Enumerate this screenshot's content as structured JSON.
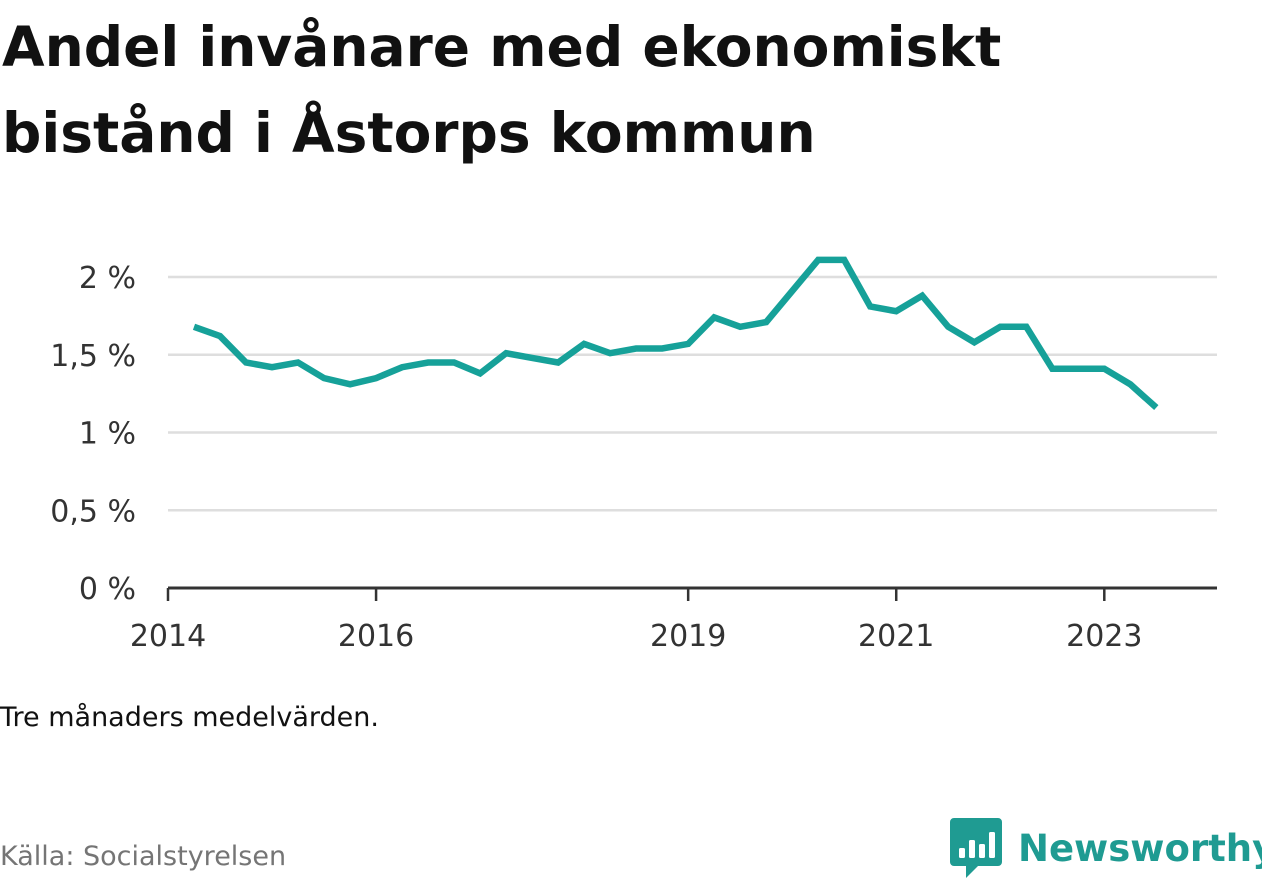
{
  "title": "Andel invånare med ekonomiskt bistånd i Åstorps kommun",
  "note": "Tre månaders medelvärden.",
  "source": "Källa: Socialstyrelsen",
  "brand": {
    "name": "Newsworthy",
    "icon": "newsworthy-logo-icon"
  },
  "colors": {
    "line": "#16a199",
    "grid": "#dedede",
    "axis": "#333333",
    "brand": "#1f9b92"
  },
  "chart_data": {
    "type": "line",
    "title": "Andel invånare med ekonomiskt bistånd i Åstorps kommun",
    "xlabel": "",
    "ylabel": "",
    "grid": true,
    "ylim": [
      0,
      2
    ],
    "y_ticks": [
      0,
      0.5,
      1,
      1.5,
      2
    ],
    "y_tick_labels": [
      "0 %",
      "0,5 %",
      "1 %",
      "1,5 %",
      "2 %"
    ],
    "x_ticks": [
      "2014",
      "2016",
      "2019",
      "2021",
      "2023"
    ],
    "x_range": [
      "2014-01",
      "2024-02"
    ],
    "series": [
      {
        "values": [
          [
            "2014-04",
            1.68
          ],
          [
            "2014-07",
            1.62
          ],
          [
            "2014-10",
            1.45
          ],
          [
            "2015-01",
            1.42
          ],
          [
            "2015-04",
            1.45
          ],
          [
            "2015-07",
            1.35
          ],
          [
            "2015-10",
            1.31
          ],
          [
            "2016-01",
            1.35
          ],
          [
            "2016-04",
            1.42
          ],
          [
            "2016-07",
            1.45
          ],
          [
            "2016-10",
            1.45
          ],
          [
            "2017-01",
            1.38
          ],
          [
            "2017-04",
            1.51
          ],
          [
            "2017-07",
            1.48
          ],
          [
            "2017-10",
            1.45
          ],
          [
            "2018-01",
            1.57
          ],
          [
            "2018-04",
            1.51
          ],
          [
            "2018-07",
            1.54
          ],
          [
            "2018-10",
            1.54
          ],
          [
            "2019-01",
            1.57
          ],
          [
            "2019-04",
            1.74
          ],
          [
            "2019-07",
            1.68
          ],
          [
            "2019-10",
            1.71
          ],
          [
            "2020-01",
            1.91
          ],
          [
            "2020-04",
            2.11
          ],
          [
            "2020-07",
            2.11
          ],
          [
            "2020-10",
            1.81
          ],
          [
            "2021-01",
            1.78
          ],
          [
            "2021-04",
            1.88
          ],
          [
            "2021-07",
            1.68
          ],
          [
            "2021-10",
            1.58
          ],
          [
            "2022-01",
            1.68
          ],
          [
            "2022-04",
            1.68
          ],
          [
            "2022-07",
            1.41
          ],
          [
            "2022-10",
            1.41
          ],
          [
            "2023-01",
            1.41
          ],
          [
            "2023-04",
            1.31
          ],
          [
            "2023-07",
            1.16
          ]
        ]
      }
    ]
  }
}
